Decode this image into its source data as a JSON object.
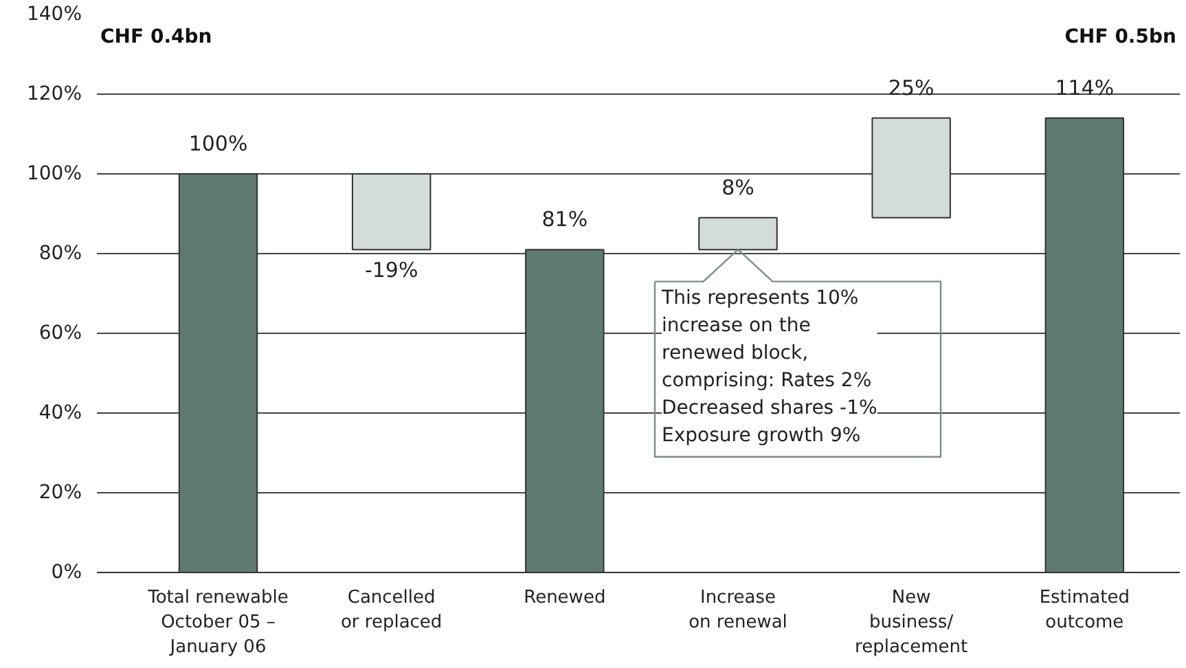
{
  "chart_data": {
    "type": "bar",
    "categories": [
      "Total renewable\nOctober 05 –\nJanuary 06",
      "Cancelled\nor replaced",
      "Renewed",
      "Increase\non renewal",
      "New\nbusiness/\nreplacement",
      "Estimated\noutcome"
    ],
    "values": [
      100,
      -19,
      81,
      8,
      25,
      114
    ],
    "base": [
      0,
      100,
      0,
      81,
      89,
      0
    ],
    "colors": [
      "#5f7a6e",
      "#d3dcd7",
      "#5f7a6e",
      "#d3dcd7",
      "#d3dcd7",
      "#5f7a6e"
    ],
    "value_labels": [
      "100%",
      "-19%",
      "81%",
      "8%",
      "25%",
      "114%"
    ],
    "ylim": [
      0,
      140
    ],
    "yticks": [
      {
        "value": 0,
        "label": "0%"
      },
      {
        "value": 20,
        "label": "20%"
      },
      {
        "value": 40,
        "label": "40%"
      },
      {
        "value": 60,
        "label": "60%"
      },
      {
        "value": 80,
        "label": "80%"
      },
      {
        "value": 100,
        "label": "100%"
      },
      {
        "value": 120,
        "label": "120%"
      },
      {
        "value": 140,
        "label": "140%"
      }
    ],
    "grid": "y",
    "annotations": [
      "CHF 0.4bn",
      "CHF 0.5bn",
      {
        "text": "This represents 10%\nincrease on the\nrenewed block,\ncomprising: Rates 2%\nDecreased shares -1%\nExposure growth 9%",
        "x": "Increase\non renewal",
        "y": 81
      }
    ]
  }
}
